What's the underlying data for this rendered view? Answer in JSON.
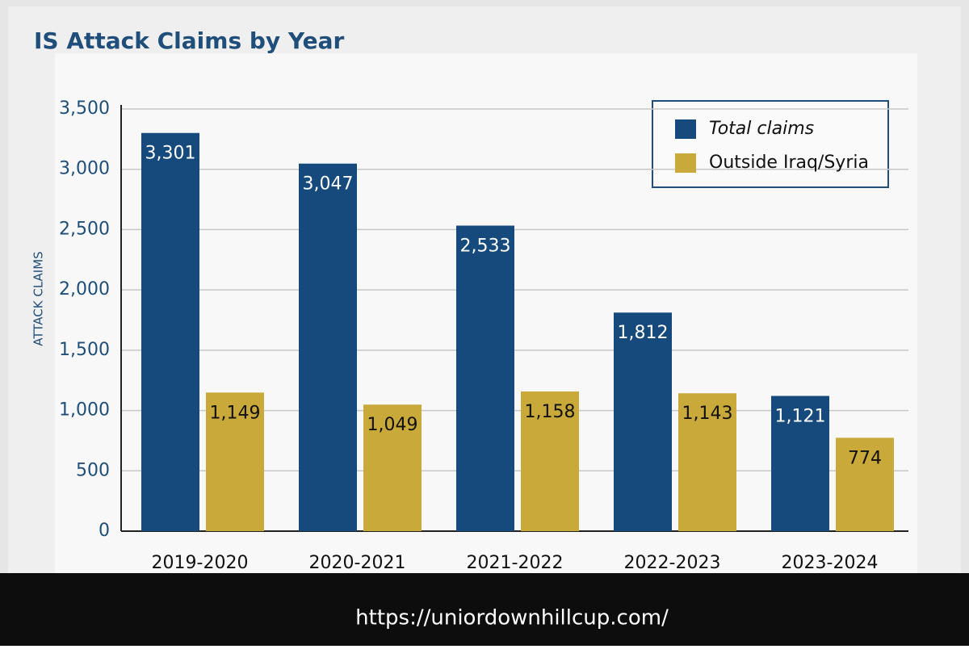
{
  "chart_data": {
    "type": "bar",
    "title": "IS Attack Claims by Year",
    "y_label": "ATTACK CLAIMS",
    "categories": [
      "2019-2020",
      "2020-2021",
      "2021-2022",
      "2022-2023",
      "2023-2024"
    ],
    "series": [
      {
        "name": "Total claims",
        "color": "#174a7c",
        "values": [
          3301,
          3047,
          2533,
          1812,
          1121
        ],
        "value_labels": [
          "3,301",
          "3,047",
          "2,533",
          "1,812",
          "1,121"
        ]
      },
      {
        "name": "Outside Iraq/Syria",
        "color": "#c9a93a",
        "values": [
          1149,
          1049,
          1158,
          1143,
          774
        ],
        "value_labels": [
          "1,149",
          "1,049",
          "1,158",
          "1,143",
          "774"
        ]
      }
    ],
    "ylim": [
      0,
      3500
    ],
    "yticks": [
      0,
      500,
      {
        "value": 1000,
        "label": "1,000"
      },
      {
        "value": 1500,
        "label": "1,500"
      },
      {
        "value": 2000,
        "label": "2,000"
      },
      {
        "value": 2500,
        "label": "2,500"
      },
      {
        "value": 3000,
        "label": "3,000"
      },
      {
        "value": 3500,
        "label": "3,500"
      }
    ],
    "grid": true,
    "legend": "top-right"
  },
  "footer_url": "https://uniordownhillcup.com/"
}
